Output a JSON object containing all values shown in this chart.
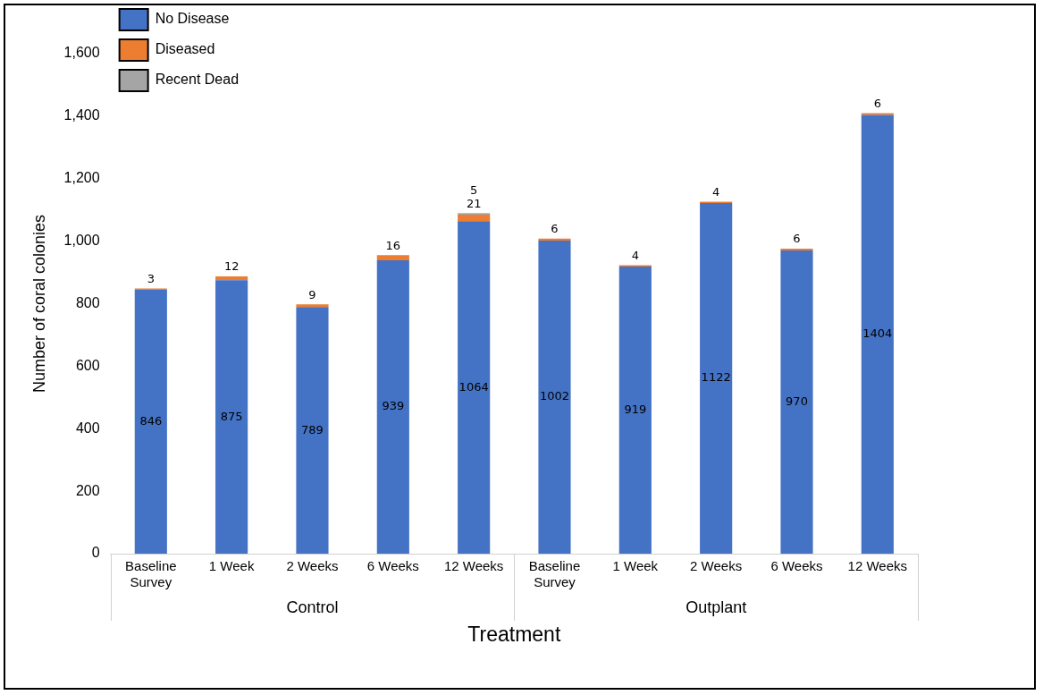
{
  "chart_data": {
    "type": "bar",
    "stacked": true,
    "ylabel": "Number of coral colonies",
    "xlabel": "Treatment",
    "categories": [
      "Baseline Survey",
      "1 Week",
      "2 Weeks",
      "6 Weeks",
      "12 Weeks",
      "Baseline Survey",
      "1 Week",
      "2 Weeks",
      "6 Weeks",
      "12 Weeks"
    ],
    "series": [
      {
        "name": "No Disease",
        "color": "#4472c4",
        "values": [
          846,
          875,
          789,
          939,
          1064,
          1002,
          919,
          1122,
          970,
          1404
        ]
      },
      {
        "name": "Diseased",
        "color": "#ed7d31",
        "values": [
          3,
          12,
          9,
          16,
          21,
          6,
          4,
          4,
          6,
          6
        ]
      },
      {
        "name": "Recent Dead",
        "color": "#a5a5a5",
        "values": [
          null,
          null,
          null,
          null,
          5,
          null,
          null,
          null,
          null,
          null
        ]
      }
    ],
    "ylim": [
      0,
      1600
    ],
    "yticks": [
      0,
      200,
      400,
      600,
      800,
      {
        "value": 1000,
        "label": "1,000"
      },
      {
        "value": 1200,
        "label": "1,200"
      },
      {
        "value": 1400,
        "label": "1,400"
      },
      {
        "value": 1600,
        "label": "1,600"
      }
    ],
    "annotations": [
      "Control",
      "Outplant"
    ],
    "data_labels": true,
    "grid": false,
    "legend": "top left"
  }
}
